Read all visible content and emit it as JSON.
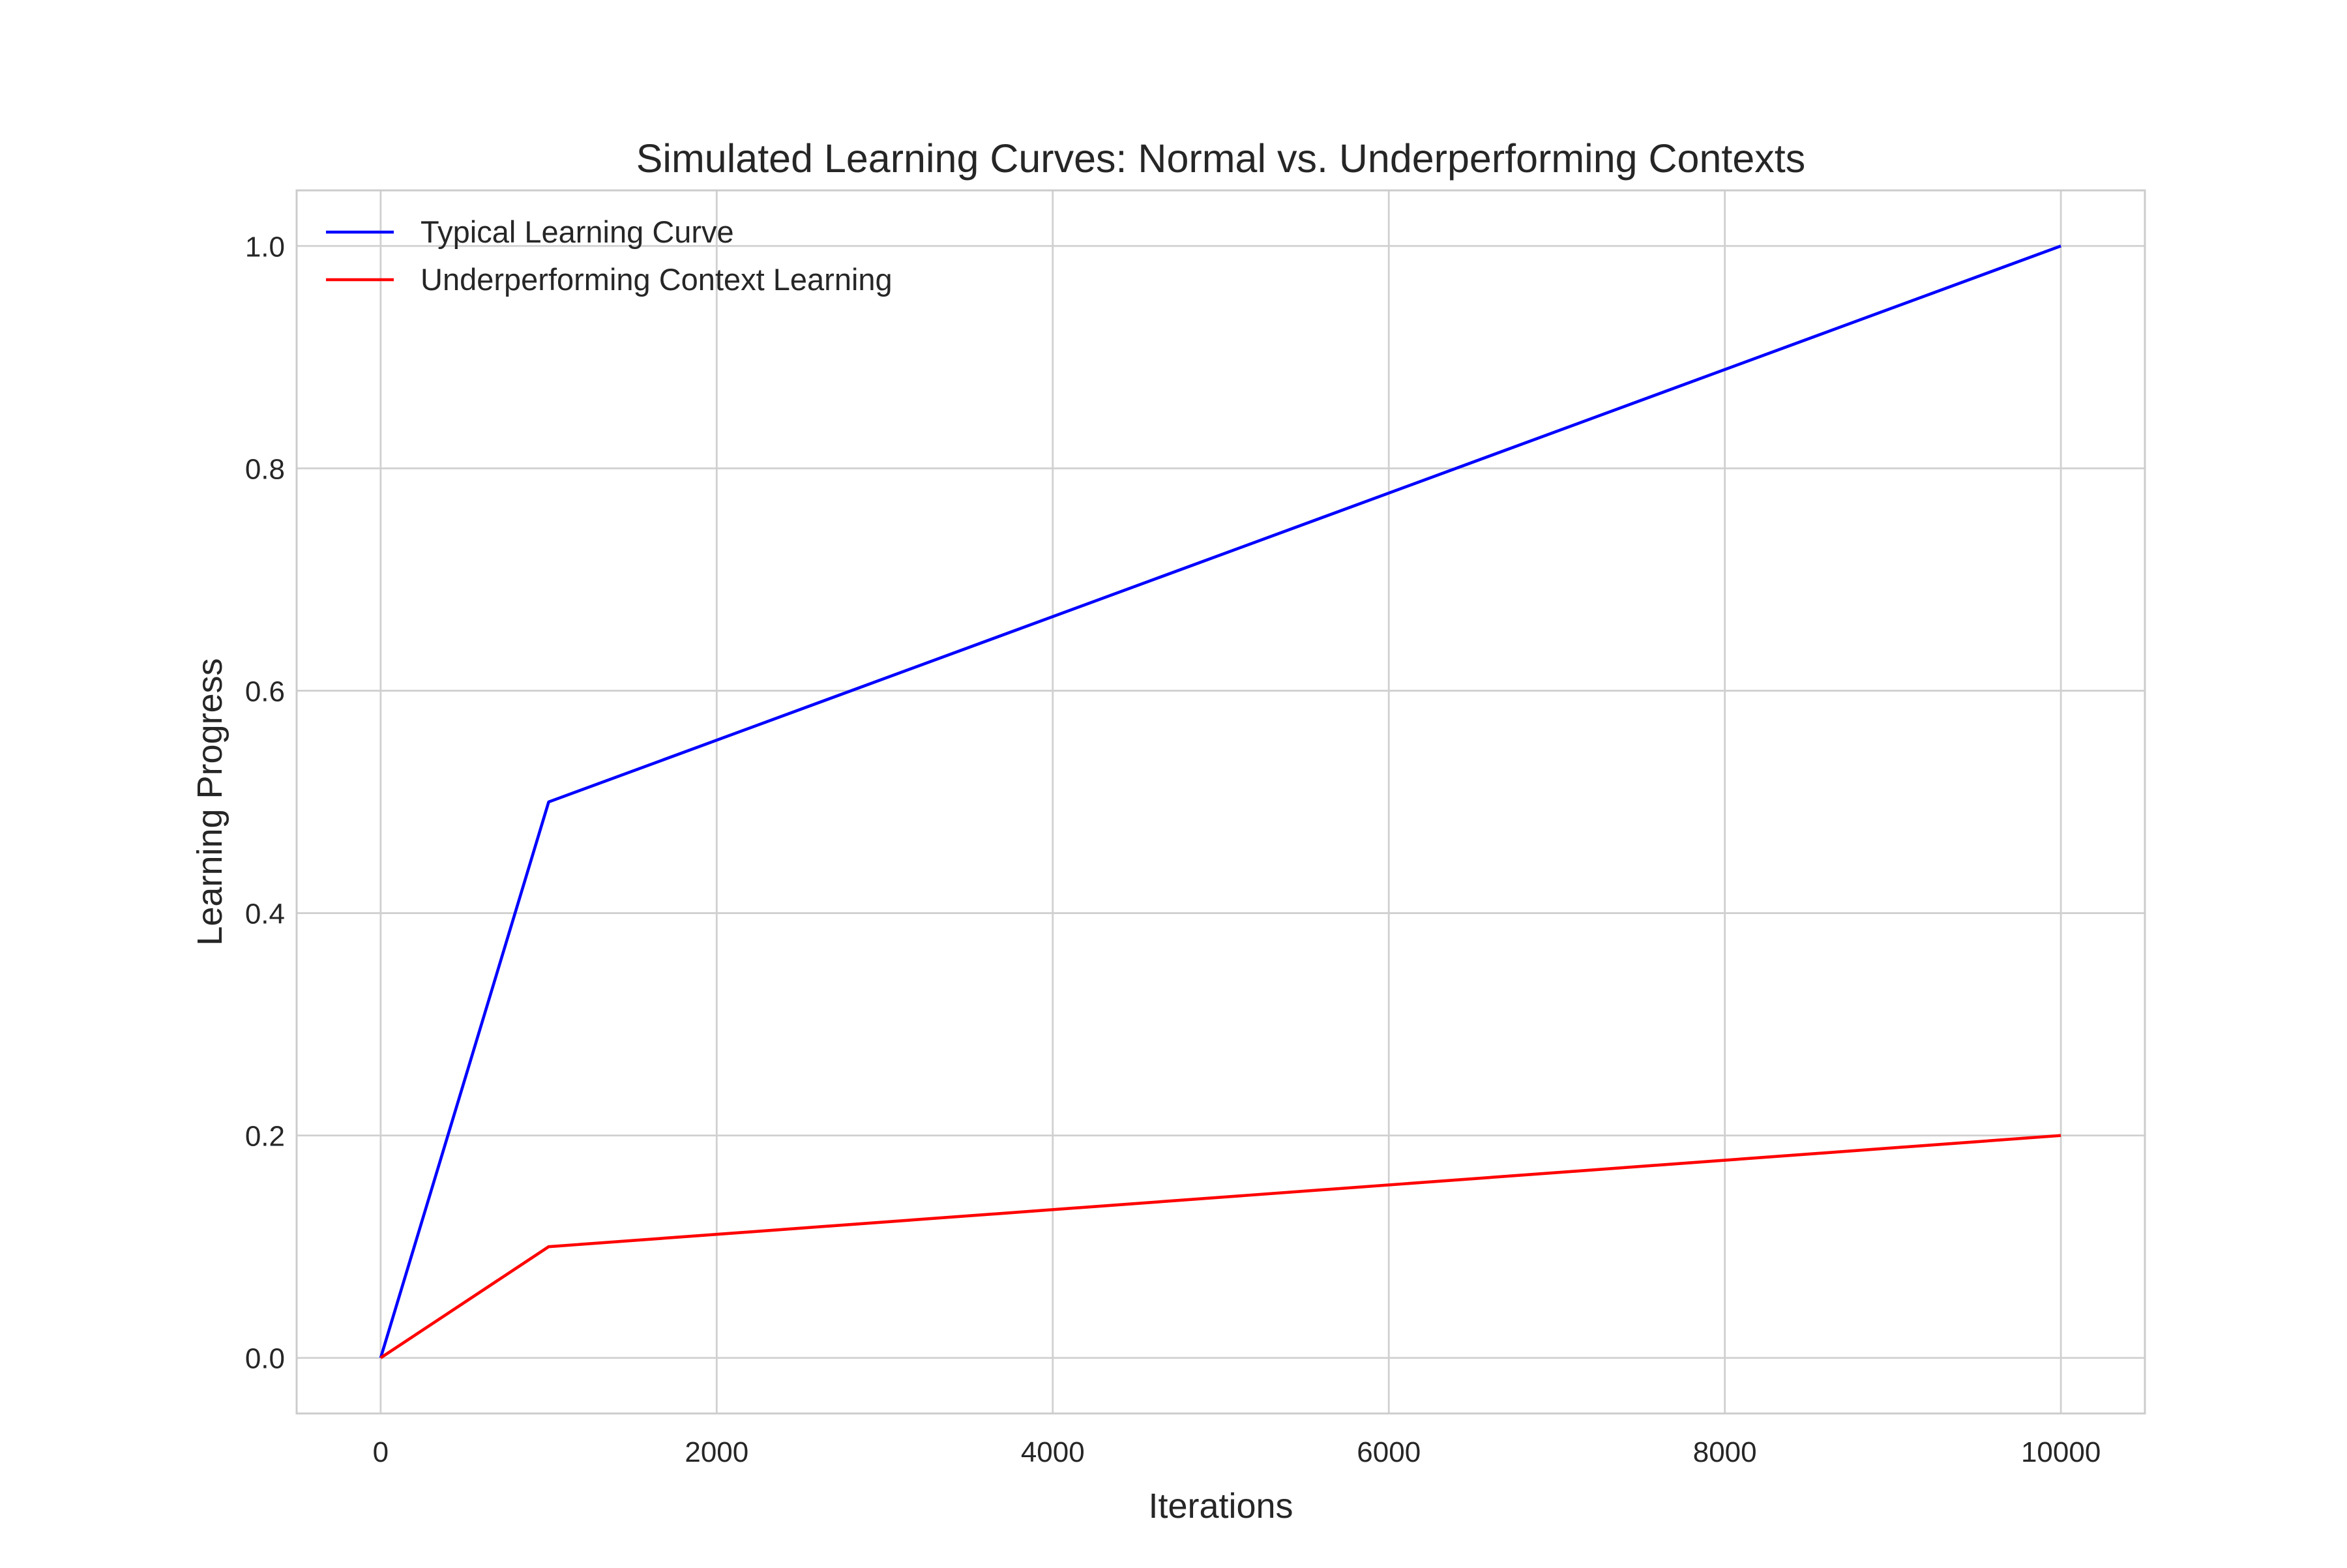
{
  "chart_data": {
    "type": "line",
    "title": "Simulated Learning Curves: Normal vs. Underperforming Contexts",
    "xlabel": "Iterations",
    "ylabel": "Learning Progress",
    "xlim": [
      -500,
      10500
    ],
    "ylim": [
      -0.05,
      1.05
    ],
    "grid": true,
    "legend_position": "upper-left",
    "x_ticks": [
      0,
      2000,
      4000,
      6000,
      8000,
      10000
    ],
    "x_tick_labels": [
      "0",
      "2000",
      "4000",
      "6000",
      "8000",
      "10000"
    ],
    "y_ticks": [
      0.0,
      0.2,
      0.4,
      0.6,
      0.8,
      1.0
    ],
    "y_tick_labels": [
      "0.0",
      "0.2",
      "0.4",
      "0.6",
      "0.8",
      "1.0"
    ],
    "series": [
      {
        "name": "Typical Learning Curve",
        "color": "#0000ff",
        "x": [
          0,
          1000,
          10000
        ],
        "y": [
          0.0,
          0.5,
          1.0
        ]
      },
      {
        "name": "Underperforming Context Learning",
        "color": "#ff0000",
        "x": [
          0,
          1000,
          10000
        ],
        "y": [
          0.0,
          0.1,
          0.2
        ]
      }
    ]
  }
}
